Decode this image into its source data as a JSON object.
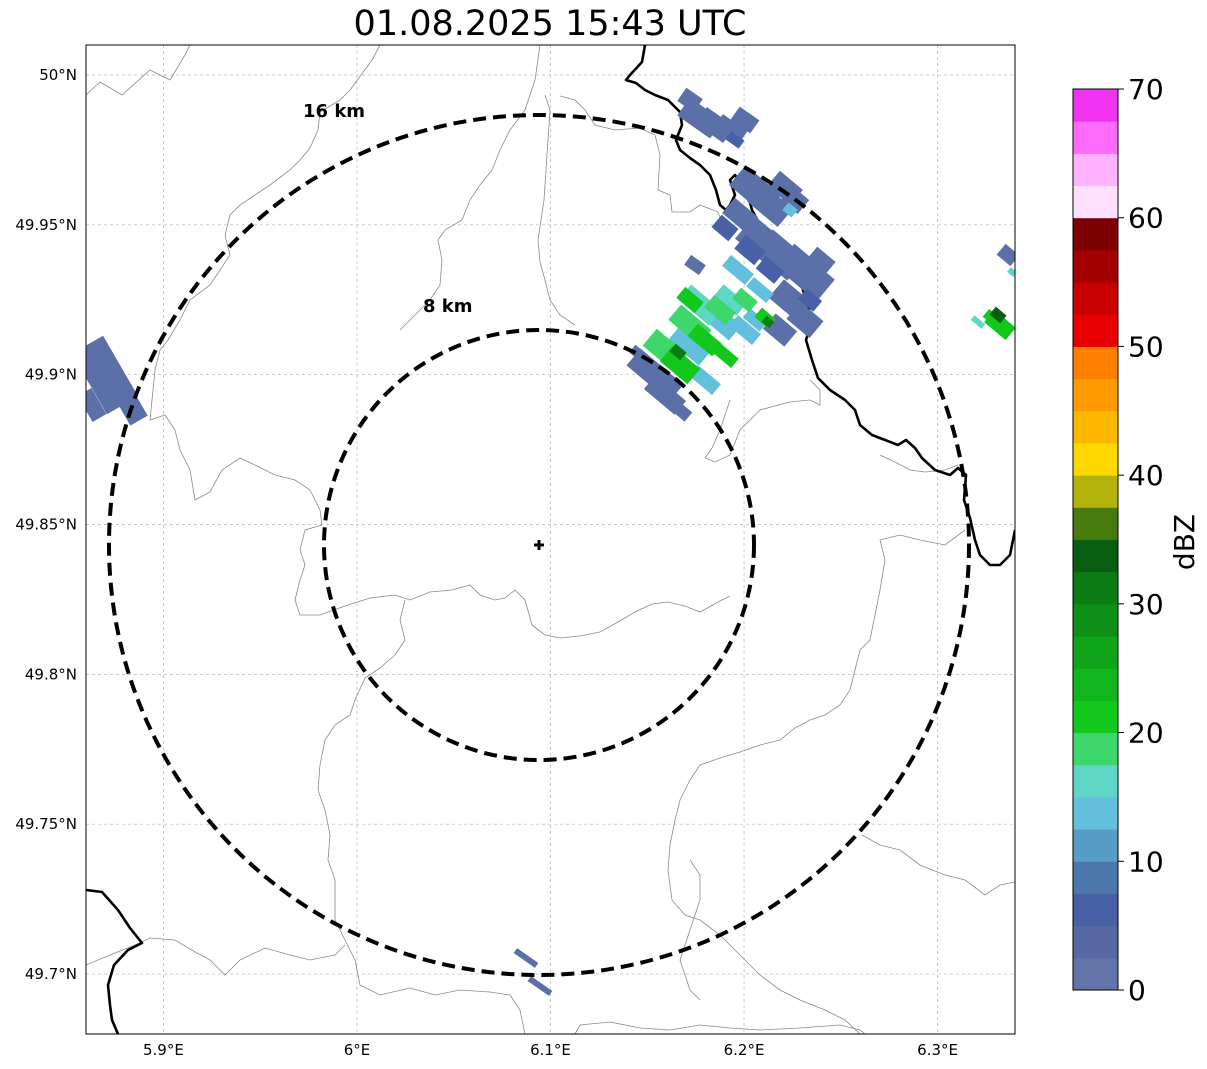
{
  "title": "01.08.2025 15:43 UTC",
  "map": {
    "lon_range": [
      5.86,
      6.34
    ],
    "lat_range": [
      49.68,
      50.01
    ],
    "y_ticks": [
      {
        "value": 50.0,
        "label": "50°N"
      },
      {
        "value": 49.95,
        "label": "49.95°N"
      },
      {
        "value": 49.9,
        "label": "49.9°N"
      },
      {
        "value": 49.85,
        "label": "49.85°N"
      },
      {
        "value": 49.8,
        "label": "49.8°N"
      },
      {
        "value": 49.75,
        "label": "49.75°N"
      },
      {
        "value": 49.7,
        "label": "49.7°N"
      }
    ],
    "x_ticks": [
      {
        "value": 5.9,
        "label": "5.9°E"
      },
      {
        "value": 6.0,
        "label": "6°E"
      },
      {
        "value": 6.1,
        "label": "6.1°E"
      },
      {
        "value": 6.2,
        "label": "6.2°E"
      },
      {
        "value": 6.3,
        "label": "6.3°E"
      }
    ],
    "grid": true,
    "radar_site": {
      "lon": 6.095,
      "lat": 49.843
    },
    "rings": [
      {
        "label": "8 km",
        "radius_km": 8
      },
      {
        "label": "16 km",
        "radius_km": 16
      }
    ]
  },
  "colorbar": {
    "label": "dBZ",
    "ticks": [
      "0",
      "10",
      "20",
      "30",
      "40",
      "50",
      "60",
      "70"
    ],
    "colors": [
      "#6374a8",
      "#5769a2",
      "#4760a6",
      "#4c78ad",
      "#569dc7",
      "#62c0dc",
      "#5fd6c6",
      "#3dd76c",
      "#12c81c",
      "#10b61c",
      "#0fa41a",
      "#0e8f18",
      "#0b7b16",
      "#075e11",
      "#477a0c",
      "#b2b20a",
      "#fdd900",
      "#ffb800",
      "#ff9b00",
      "#ff7f00",
      "#e60000",
      "#c80000",
      "#a30000",
      "#7c0000",
      "#ffe1ff",
      "#ffb2ff",
      "#ff6bff",
      "#f033f0"
    ]
  },
  "echo_colors": {
    "weak": "#5b6fa8",
    "weak_dark": "#4760a6",
    "light": "#62c0dc",
    "teal": "#5fd6c6",
    "green_light": "#3dd76c",
    "green": "#12c81c",
    "green_dark": "#0b7b16",
    "green_darker": "#075e11"
  }
}
